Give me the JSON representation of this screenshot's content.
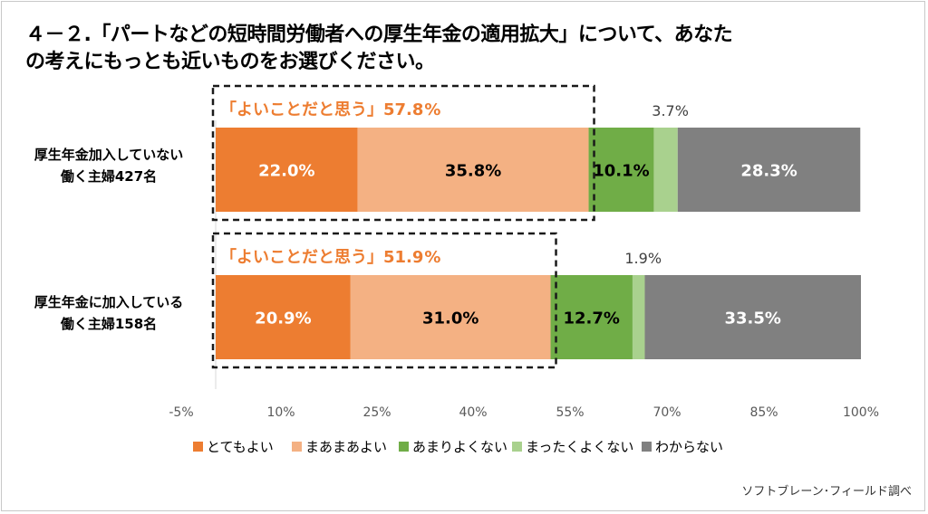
{
  "title_line1": "４－２.「パートなどの短時間労働者への厚生年金の適用拡大」について、あなた",
  "title_line2": "の考えにもっとも近いものをお選びください。",
  "source": "ソフトブレーン･フィールド調べ",
  "colors": [
    "#ed7d31",
    "#f4b183",
    "#70ad47",
    "#a9d18e",
    "#808080"
  ],
  "chart_data": {
    "type": "bar",
    "orientation": "horizontal",
    "stacked": true,
    "categories": [
      [
        "厚生年金加入していない",
        "働く主婦427名"
      ],
      [
        "厚生年金に加入している",
        "働く主婦158名"
      ]
    ],
    "series": [
      {
        "name": "とてもよい",
        "values": [
          22.0,
          20.9
        ],
        "labels": [
          "22.0%",
          "20.9%"
        ]
      },
      {
        "name": "まあまあよい",
        "values": [
          35.8,
          31.0
        ],
        "labels": [
          "35.8%",
          "31.0%"
        ]
      },
      {
        "name": "あまりよくない",
        "values": [
          10.1,
          12.7
        ],
        "labels": [
          "10.1%",
          "12.7%"
        ]
      },
      {
        "name": "まったくよくない",
        "values": [
          3.7,
          1.9
        ],
        "labels": [
          "3.7%",
          "1.9%"
        ]
      },
      {
        "name": "わからない",
        "values": [
          28.3,
          33.5
        ],
        "labels": [
          "28.3%",
          "33.5%"
        ]
      }
    ],
    "annotations": [
      {
        "prefix": "「よいことだと思う」",
        "value": "57.8",
        "suffix": "%"
      },
      {
        "prefix": "「よいことだと思う」",
        "value": "51.9",
        "suffix": "%"
      }
    ],
    "xticks": [
      "-5%",
      "10%",
      "25%",
      "40%",
      "55%",
      "70%",
      "85%",
      "100%"
    ],
    "xlim": [
      0,
      100
    ],
    "grid": false,
    "legend_position": "bottom"
  }
}
